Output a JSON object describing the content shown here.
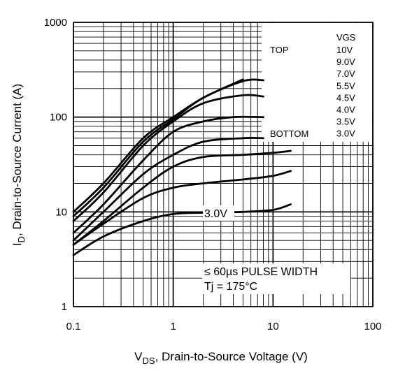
{
  "chart_data": {
    "type": "line",
    "title": "",
    "xlabel": {
      "main": "V",
      "sub": "DS",
      "rest": ", Drain-to-Source Voltage (V)"
    },
    "ylabel": {
      "main": "I",
      "sub": "D",
      "rest": ", Drain-to-Source Current (A)"
    },
    "x_scale": "log",
    "y_scale": "log",
    "xlim": [
      0.1,
      100
    ],
    "ylim": [
      1,
      1000
    ],
    "x_ticks": [
      {
        "value": 0.1,
        "label": "0.1"
      },
      {
        "value": 1,
        "label": "1"
      },
      {
        "value": 10,
        "label": "10"
      },
      {
        "value": 100,
        "label": "100"
      }
    ],
    "y_ticks": [
      {
        "value": 1,
        "label": "1"
      },
      {
        "value": 10,
        "label": "10"
      },
      {
        "value": 100,
        "label": "100"
      },
      {
        "value": 1000,
        "label": "1000"
      }
    ],
    "grid": true,
    "legend": {
      "placement": "top-right",
      "header": "VGS",
      "top_label": "TOP",
      "bottom_label": "BOTTOM",
      "entries": [
        "10V",
        "9.0V",
        "7.0V",
        "5.5V",
        "4.5V",
        "4.0V",
        "3.5V",
        "3.0V"
      ]
    },
    "series": [
      {
        "x": [
          0.1,
          0.2,
          0.5,
          1,
          2,
          5
        ],
        "y": [
          10,
          20,
          60,
          100,
          160,
          250
        ]
      },
      {
        "x": [
          0.1,
          0.2,
          0.5,
          1,
          2,
          5,
          8
        ],
        "y": [
          9,
          18,
          55,
          95,
          160,
          240,
          245
        ]
      },
      {
        "x": [
          0.1,
          0.2,
          0.5,
          1,
          2,
          5,
          8
        ],
        "y": [
          8,
          16,
          50,
          90,
          140,
          170,
          165
        ]
      },
      {
        "x": [
          0.1,
          0.2,
          0.5,
          1,
          2,
          4,
          8
        ],
        "y": [
          6,
          12,
          35,
          70,
          90,
          100,
          100
        ]
      },
      {
        "x": [
          0.1,
          0.2,
          0.5,
          1,
          2,
          5,
          8
        ],
        "y": [
          5,
          10,
          25,
          40,
          55,
          60,
          60
        ]
      },
      {
        "x": [
          0.1,
          0.2,
          0.5,
          1,
          2,
          5,
          10,
          15
        ],
        "y": [
          4.5,
          8,
          18,
          30,
          38,
          40,
          42,
          44
        ]
      },
      {
        "x": [
          0.1,
          0.2,
          0.5,
          1,
          2,
          5,
          10,
          15
        ],
        "y": [
          4.5,
          7.5,
          14,
          18,
          20,
          22,
          24,
          27
        ]
      },
      {
        "x": [
          0.1,
          0.2,
          0.5,
          1,
          2,
          5,
          10,
          15
        ],
        "y": [
          3.5,
          5.5,
          8,
          9.5,
          9.8,
          10,
          10.5,
          12
        ]
      }
    ],
    "annotations": {
      "curve_label": "3.0V",
      "pulse_width": "≤ 60µs PULSE WIDTH",
      "temperature": "Tj = 175°C"
    }
  }
}
